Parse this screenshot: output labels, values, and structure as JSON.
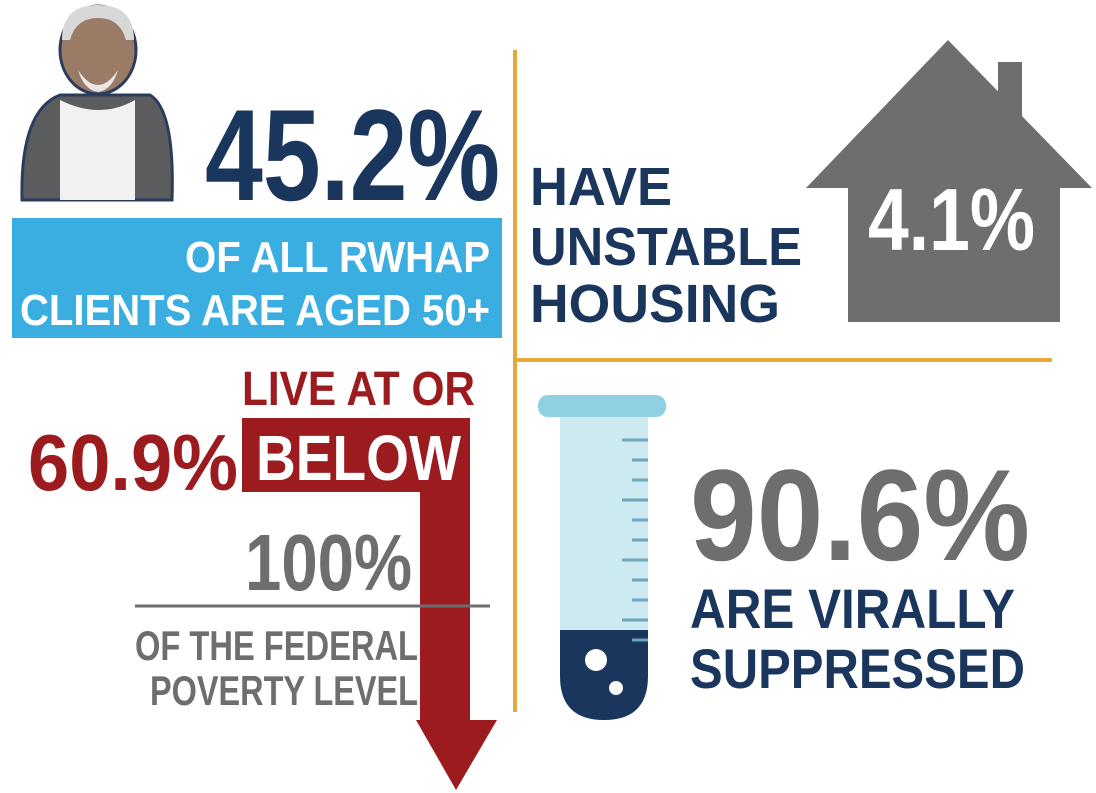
{
  "age": {
    "percent": "45.2%",
    "lines": [
      "OF ALL RWHAP",
      "CLIENTS ARE AGED 50+"
    ]
  },
  "housing": {
    "lines": [
      "HAVE",
      "UNSTABLE",
      "HOUSING"
    ],
    "percent": "4.1%"
  },
  "poverty": {
    "percent": "60.9%",
    "lines": [
      "LIVE AT OR",
      "BELOW"
    ],
    "threshold": "100%",
    "footer": [
      "OF THE FEDERAL",
      "POVERTY LEVEL"
    ]
  },
  "viral": {
    "percent": "90.6%",
    "lines": [
      "ARE VIRALLY",
      "SUPPRESSED"
    ]
  }
}
